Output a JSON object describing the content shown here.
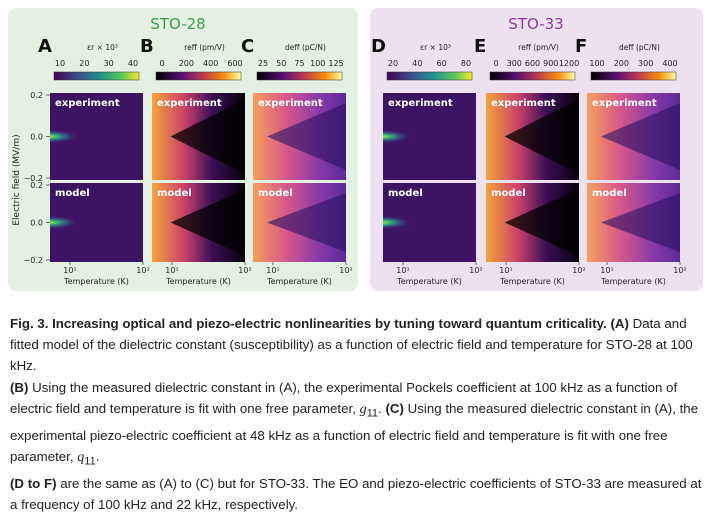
{
  "y_label": "Electric field (MV/m)",
  "groups": [
    {
      "title": "STO-28",
      "yticks_top": [
        "0.2",
        "0.0",
        "−0.2"
      ],
      "yticks_bottom": [
        "0.2",
        "0.0",
        "−0.2"
      ],
      "panels": [
        {
          "letter": "A",
          "cbar_label": "εr × 10³",
          "cbar_ticks": [
            "10",
            "20",
            "30",
            "40"
          ],
          "row_labels": [
            "experiment",
            "model"
          ],
          "xticks": [
            "10¹",
            "10²"
          ],
          "x_label": "Temperature (K)"
        },
        {
          "letter": "B",
          "cbar_label": "reff (pm/V)",
          "cbar_ticks": [
            "0",
            "200",
            "400",
            "600"
          ],
          "row_labels": [
            "experiment",
            "model"
          ],
          "xticks": [
            "10¹",
            "10²"
          ],
          "x_label": "Temperature (K)"
        },
        {
          "letter": "C",
          "cbar_label": "deff (pC/N)",
          "cbar_ticks": [
            "25",
            "50",
            "75",
            "100",
            "125"
          ],
          "row_labels": [
            "experiment",
            "model"
          ],
          "xticks": [
            "10¹",
            "10²"
          ],
          "x_label": "Temperature (K)"
        }
      ]
    },
    {
      "title": "STO-33",
      "panels": [
        {
          "letter": "D",
          "cbar_label": "εr × 10³",
          "cbar_ticks": [
            "20",
            "40",
            "60",
            "80"
          ],
          "row_labels": [
            "experiment",
            "model"
          ],
          "xticks": [
            "10¹",
            "10²"
          ],
          "x_label": "Temperature (K)"
        },
        {
          "letter": "E",
          "cbar_label": "reff (pm/V)",
          "cbar_ticks": [
            "0",
            "300",
            "600",
            "900",
            "1200"
          ],
          "row_labels": [
            "experiment",
            "model"
          ],
          "xticks": [
            "10¹",
            "10²"
          ],
          "x_label": "Temperature (K)"
        },
        {
          "letter": "F",
          "cbar_label": "deff (pC/N)",
          "cbar_ticks": [
            "100",
            "200",
            "300",
            "400"
          ],
          "row_labels": [
            "experiment",
            "model"
          ],
          "xticks": [
            "10¹",
            "10²"
          ],
          "x_label": "Temperature (K)"
        }
      ]
    }
  ],
  "caption": {
    "runs": [
      "Fig. 3. Increasing optical and piezo-electric nonlinearities by tuning toward quantum criticality.",
      "(A)",
      " Data and fitted model of the dielectric constant (susceptibility) as a function of electric field and temperature for STO-28 at 100 kHz.",
      "(B)",
      " Using the measured dielectric constant in (A), the experimental Pockels coefficient at 100 kHz as a function of electric field and temperature is fit with one free parameter, ",
      "g",
      "11",
      ". ",
      "(C)",
      " Using the measured dielectric constant in (A), the experimental piezo-electric coefficient at 48 kHz as a function of electric field and temperature is fit with one free parameter, ",
      "q",
      "11",
      ".",
      "(D to F)",
      " are the same as (A) to (C) but for STO-33. The EO and piezo-electric coefficients of STO-33 are measured at a frequency of 100 kHz and 22 kHz, respectively."
    ]
  }
}
